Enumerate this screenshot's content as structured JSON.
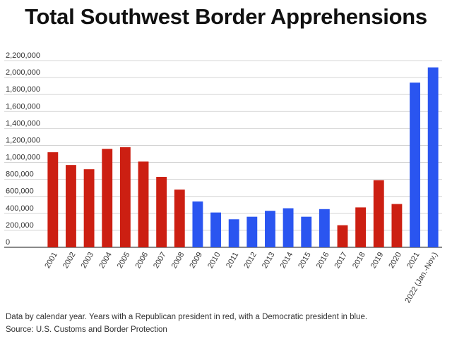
{
  "chart_data": {
    "type": "bar",
    "title": "Total Southwest Border Apprehensions",
    "xlabel": "",
    "ylabel": "",
    "ylim": [
      0,
      2200000
    ],
    "yticks": [
      0,
      200000,
      400000,
      600000,
      800000,
      1000000,
      1200000,
      1400000,
      1600000,
      1800000,
      2000000,
      2200000
    ],
    "ytick_labels": [
      "0",
      "200,000",
      "400,000",
      "600,000",
      "800,000",
      "1,000,000",
      "1,200,000",
      "1,400,000",
      "1,600,000",
      "1,800,000",
      "2,000,000",
      "2,200,000"
    ],
    "categories": [
      "2001",
      "2002",
      "2003",
      "2004",
      "2005",
      "2006",
      "2007",
      "2008",
      "2009",
      "2010",
      "2011",
      "2012",
      "2013",
      "2014",
      "2015",
      "2016",
      "2017",
      "2018",
      "2019",
      "2020",
      "2021",
      "2022 (Jan.-Nov.)"
    ],
    "values": [
      1120000,
      970000,
      920000,
      1160000,
      1180000,
      1010000,
      830000,
      680000,
      540000,
      410000,
      330000,
      360000,
      430000,
      460000,
      360000,
      450000,
      260000,
      470000,
      790000,
      510000,
      1940000,
      2120000
    ],
    "party": [
      "R",
      "R",
      "R",
      "R",
      "R",
      "R",
      "R",
      "R",
      "D",
      "D",
      "D",
      "D",
      "D",
      "D",
      "D",
      "D",
      "R",
      "R",
      "R",
      "R",
      "D",
      "D"
    ],
    "colors": {
      "R": "#cc1f12",
      "D": "#2a55f0"
    },
    "grid": true
  },
  "footnote": "Data by calendar year. Years with a Republican president in red, with a Democratic president in blue.",
  "source": "Source: U.S. Customs and Border Protection"
}
